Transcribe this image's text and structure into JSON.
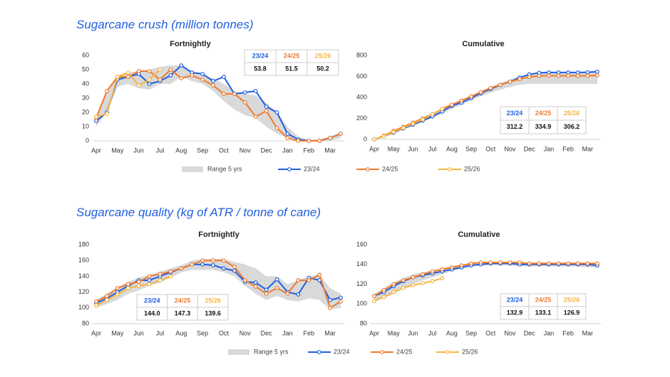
{
  "headings": [
    "Sugarcane crush (million tonnes)",
    "Sugarcane quality (kg of ATR / tonne of cane)"
  ],
  "chart_data": [
    {
      "type": "line",
      "title": "Fortnightly",
      "categories": [
        "Apr",
        null,
        "May",
        null,
        "Jun",
        null,
        "Jul",
        null,
        "Aug",
        null,
        "Sep",
        null,
        "Oct",
        null,
        "Nov",
        null,
        "Dec",
        null,
        "Jan",
        null,
        "Feb",
        null,
        "Mar",
        null
      ],
      "ylim": [
        0,
        60
      ],
      "yticks": [
        0,
        10,
        20,
        30,
        40,
        50,
        60
      ],
      "grid": false,
      "series": [
        {
          "name": "Range 5 yrs",
          "type": "range",
          "color": "#d9d9d9",
          "low": [
            10,
            20,
            38,
            40,
            37,
            36,
            40,
            40,
            45,
            42,
            40,
            35,
            28,
            22,
            18,
            16,
            10,
            5,
            2,
            0,
            0,
            0,
            0,
            2
          ],
          "high": [
            17,
            35,
            45,
            48,
            49,
            50,
            52,
            53,
            53,
            48,
            46,
            44,
            40,
            35,
            33,
            32,
            27,
            20,
            10,
            3,
            1,
            1,
            3,
            6
          ]
        },
        {
          "name": "23/24",
          "color": "#1f5fe0",
          "values": [
            14,
            20,
            43,
            45,
            47,
            40,
            42,
            46,
            53,
            48,
            47,
            42,
            45,
            33,
            34,
            35,
            24,
            20,
            5,
            1,
            0,
            0,
            2,
            5
          ]
        },
        {
          "name": "24/25",
          "color": "#f07a2c",
          "values": [
            16,
            35,
            45,
            45,
            49,
            49,
            43,
            50,
            44,
            46,
            43,
            39,
            33,
            33,
            27,
            17,
            21,
            9,
            2,
            0,
            0,
            0,
            2,
            5
          ]
        },
        {
          "name": "25/26",
          "color": "#f7b540",
          "values": [
            17,
            19,
            45,
            48,
            39,
            43,
            50,
            null,
            null,
            null,
            null,
            null,
            null,
            null,
            null,
            null,
            null,
            null,
            null,
            null,
            null,
            null,
            null,
            null
          ]
        }
      ],
      "table": {
        "headers": [
          "23/24",
          "24/25",
          "25/26"
        ],
        "values": [
          53.8,
          51.5,
          50.2
        ]
      }
    },
    {
      "type": "line",
      "title": "Cumulative",
      "categories": [
        "Apr",
        null,
        "May",
        null,
        "Jun",
        null,
        "Jul",
        null,
        "Aug",
        null,
        "Sep",
        null,
        "Oct",
        null,
        "Nov",
        null,
        "Dec",
        null,
        "Jan",
        null,
        "Feb",
        null,
        "Mar",
        null
      ],
      "ylim": [
        0,
        800
      ],
      "yticks": [
        0,
        200,
        400,
        600,
        800
      ],
      "grid": false,
      "series": [
        {
          "type": "range",
          "color": "#d9d9d9",
          "low": [
            0,
            25,
            60,
            95,
            130,
            165,
            205,
            245,
            290,
            330,
            370,
            410,
            445,
            475,
            500,
            520,
            530,
            530,
            530,
            530,
            530,
            530,
            530,
            530
          ],
          "high": [
            5,
            40,
            85,
            125,
            165,
            210,
            250,
            300,
            340,
            380,
            420,
            460,
            500,
            540,
            570,
            600,
            625,
            640,
            645,
            645,
            645,
            645,
            648,
            650
          ]
        },
        {
          "color": "#1f5fe0",
          "values": [
            0,
            30,
            65,
            105,
            140,
            180,
            220,
            265,
            320,
            350,
            395,
            440,
            480,
            520,
            550,
            590,
            620,
            635,
            638,
            638,
            638,
            638,
            640,
            645
          ]
        },
        {
          "color": "#f07a2c",
          "values": [
            0,
            35,
            80,
            120,
            160,
            200,
            240,
            290,
            330,
            370,
            410,
            450,
            490,
            520,
            550,
            575,
            595,
            605,
            607,
            607,
            607,
            607,
            607,
            610
          ]
        },
        {
          "color": "#f7b540",
          "values": [
            0,
            30,
            70,
            110,
            150,
            190,
            240,
            290,
            null,
            null,
            null,
            null,
            null,
            null,
            null,
            null,
            null,
            null,
            null,
            null,
            null,
            null,
            null,
            null
          ]
        }
      ],
      "table": {
        "headers": [
          "23/24",
          "24/25",
          "25/26"
        ],
        "values": [
          312.2,
          334.9,
          306.2
        ]
      }
    },
    {
      "type": "line",
      "title": "Fortnightly",
      "categories": [
        "Apr",
        null,
        "May",
        null,
        "Jun",
        null,
        "Jul",
        null,
        "Aug",
        null,
        "Sep",
        null,
        "Oct",
        null,
        "Nov",
        null,
        "Dec",
        null,
        "Jan",
        null,
        "Feb",
        null,
        "Mar",
        null
      ],
      "ylim": [
        80,
        180
      ],
      "yticks": [
        80,
        100,
        120,
        140,
        160,
        180
      ],
      "grid": false,
      "series": [
        {
          "name": "Range 5 yrs",
          "type": "range",
          "color": "#d9d9d9",
          "low": [
            100,
            105,
            110,
            118,
            122,
            128,
            132,
            138,
            145,
            148,
            148,
            148,
            145,
            140,
            128,
            118,
            110,
            115,
            110,
            108,
            112,
            110,
            98,
            100
          ],
          "high": [
            110,
            118,
            126,
            133,
            138,
            142,
            146,
            150,
            154,
            160,
            162,
            162,
            162,
            158,
            155,
            150,
            140,
            140,
            130,
            135,
            140,
            142,
            125,
            118
          ]
        },
        {
          "name": "23/24",
          "color": "#1f5fe0",
          "values": [
            106,
            112,
            120,
            128,
            135,
            135,
            140,
            145,
            150,
            155,
            155,
            154,
            150,
            147,
            133,
            132,
            123,
            136,
            120,
            117,
            138,
            135,
            110,
            113
          ]
        },
        {
          "name": "24/25",
          "color": "#f07a2c",
          "values": [
            108,
            115,
            125,
            130,
            133,
            140,
            143,
            146,
            150,
            155,
            160,
            160,
            160,
            152,
            135,
            127,
            118,
            125,
            118,
            135,
            135,
            142,
            100,
            108
          ]
        },
        {
          "name": "25/26",
          "color": "#f7b540",
          "values": [
            103,
            110,
            117,
            125,
            128,
            130,
            135,
            140,
            null,
            null,
            null,
            null,
            null,
            null,
            null,
            null,
            null,
            null,
            null,
            null,
            null,
            null,
            null,
            null
          ]
        }
      ],
      "table": {
        "headers": [
          "23/24",
          "24/25",
          "25/26"
        ],
        "values": [
          144,
          147.3,
          139.6
        ],
        "value_labels": [
          "144.0",
          "147.3",
          "139.6"
        ]
      }
    },
    {
      "type": "line",
      "title": "Cumulative",
      "categories": [
        "Apr",
        null,
        "May",
        null,
        "Jun",
        null,
        "Jul",
        null,
        "Aug",
        null,
        "Sep",
        null,
        "Oct",
        null,
        "Nov",
        null,
        "Dec",
        null,
        "Jan",
        null,
        "Feb",
        null,
        "Mar",
        null
      ],
      "ylim": [
        80,
        160
      ],
      "yticks": [
        80,
        100,
        120,
        140,
        160
      ],
      "grid": false,
      "series": [
        {
          "type": "range",
          "color": "#d9d9d9",
          "low": [
            102,
            106,
            110,
            116,
            120,
            124,
            127,
            130,
            133,
            136,
            138,
            139,
            139,
            139,
            139,
            138,
            138,
            138,
            138,
            138,
            138,
            138,
            137,
            137
          ],
          "high": [
            110,
            116,
            122,
            126,
            130,
            132,
            134,
            136,
            138,
            140,
            141,
            142,
            142,
            142,
            142,
            142,
            142,
            142,
            142,
            142,
            142,
            142,
            142,
            142
          ]
        },
        {
          "color": "#1f5fe0",
          "values": [
            108,
            112,
            118,
            123,
            127,
            129,
            131,
            133,
            135,
            137,
            139,
            140,
            141,
            141,
            141,
            140,
            140,
            140,
            140,
            140,
            140,
            140,
            140,
            139
          ]
        },
        {
          "color": "#f07a2c",
          "values": [
            108,
            114,
            120,
            124,
            127,
            130,
            133,
            135,
            137,
            139,
            141,
            142,
            142,
            142,
            142,
            142,
            141,
            141,
            141,
            141,
            141,
            141,
            141,
            141
          ]
        },
        {
          "color": "#f7b540",
          "values": [
            103,
            107,
            112,
            116,
            119,
            121,
            123,
            126,
            null,
            null,
            null,
            null,
            null,
            null,
            null,
            null,
            null,
            null,
            null,
            null,
            null,
            null,
            null,
            null
          ]
        }
      ],
      "table": {
        "headers": [
          "23/24",
          "24/25",
          "25/26"
        ],
        "values": [
          132.9,
          133.1,
          126.9
        ]
      }
    }
  ]
}
